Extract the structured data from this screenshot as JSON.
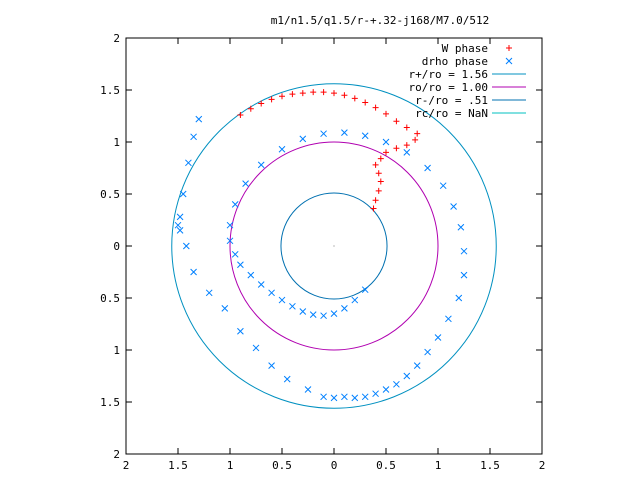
{
  "chart_data": {
    "type": "scatter",
    "title": "m1/n1.5/q1.5/r-+.32-j168/M7.0/512",
    "xlim": [
      -2,
      2
    ],
    "ylim": [
      -2,
      2
    ],
    "x_tick_values": [
      -2,
      -1.5,
      -1,
      -0.5,
      0,
      0.5,
      1,
      1.5,
      2
    ],
    "x_tick_labels": [
      "2",
      "1.5",
      "1",
      "0.5",
      "0",
      "0.5",
      "1",
      "1.5",
      "2"
    ],
    "y_tick_values": [
      2,
      1.5,
      1,
      0.5,
      0,
      -0.5,
      -1,
      -1.5,
      -2
    ],
    "y_tick_labels": [
      "2",
      "1.5",
      "1",
      "0.5",
      "0",
      "0.5",
      "1",
      "1.5",
      "2"
    ],
    "grid": false,
    "legend_position": "top-right",
    "legend": [
      {
        "label": "W phase",
        "kind": "plus",
        "color": "#ff0000"
      },
      {
        "label": "drho phase",
        "kind": "cross",
        "color": "#0080ff"
      },
      {
        "label": "r+/ro = 1.56",
        "kind": "line",
        "color": "#0090c0"
      },
      {
        "label": "ro/ro = 1.00",
        "kind": "line",
        "color": "#b000b0"
      },
      {
        "label": "r-/ro = .51",
        "kind": "line",
        "color": "#0070b0"
      },
      {
        "label": "rc/ro = NaN",
        "kind": "line",
        "color": "#00c0c0"
      }
    ],
    "circles": [
      {
        "name": "r+/ro",
        "r": 1.56,
        "color": "#0090c0"
      },
      {
        "name": "ro/ro",
        "r": 1.0,
        "color": "#b000b0"
      },
      {
        "name": "r-/ro",
        "r": 0.51,
        "color": "#0070b0"
      }
    ],
    "series": [
      {
        "name": "W phase",
        "marker": "plus",
        "color": "#ff0000",
        "x": [
          -0.9,
          -0.8,
          -0.7,
          -0.6,
          -0.5,
          -0.4,
          -0.3,
          -0.2,
          -0.1,
          0.0,
          0.1,
          0.2,
          0.3,
          0.4,
          0.5,
          0.6,
          0.7,
          0.8,
          0.78,
          0.7,
          0.6,
          0.5,
          0.45,
          0.4,
          0.43,
          0.45,
          0.43,
          0.4,
          0.38
        ],
        "y": [
          1.26,
          1.32,
          1.37,
          1.41,
          1.44,
          1.46,
          1.47,
          1.48,
          1.48,
          1.47,
          1.45,
          1.42,
          1.38,
          1.33,
          1.27,
          1.2,
          1.14,
          1.08,
          1.02,
          0.97,
          0.94,
          0.9,
          0.84,
          0.78,
          0.7,
          0.62,
          0.53,
          0.44,
          0.36
        ]
      },
      {
        "name": "drho phase",
        "marker": "cross",
        "color": "#0080ff",
        "x": [
          0.3,
          0.2,
          0.1,
          0.0,
          -0.1,
          -0.2,
          -0.3,
          -0.4,
          -0.5,
          -0.6,
          -0.7,
          -0.8,
          -0.9,
          -0.95,
          -1.0,
          -1.0,
          -0.95,
          -0.85,
          -0.7,
          -0.5,
          -0.3,
          -0.1,
          0.1,
          0.3,
          0.5,
          0.7,
          0.9,
          1.05,
          1.15,
          1.22,
          1.25,
          1.25,
          1.2,
          1.1,
          1.0,
          0.9,
          0.8,
          0.7,
          0.6,
          0.5,
          0.4,
          0.3,
          0.2,
          0.1,
          0.0,
          -0.1,
          -0.25,
          -0.45,
          -0.6,
          -0.75,
          -0.9,
          -1.05,
          -1.2,
          -1.35,
          -1.42,
          -1.48,
          -1.5,
          -1.48,
          -1.45,
          -1.4,
          -1.35,
          -1.3
        ],
        "y": [
          -0.42,
          -0.52,
          -0.6,
          -0.65,
          -0.67,
          -0.66,
          -0.63,
          -0.58,
          -0.52,
          -0.45,
          -0.37,
          -0.28,
          -0.18,
          -0.08,
          0.05,
          0.2,
          0.4,
          0.6,
          0.78,
          0.93,
          1.03,
          1.08,
          1.09,
          1.06,
          1.0,
          0.9,
          0.75,
          0.58,
          0.38,
          0.18,
          -0.05,
          -0.28,
          -0.5,
          -0.7,
          -0.88,
          -1.02,
          -1.15,
          -1.25,
          -1.33,
          -1.38,
          -1.42,
          -1.45,
          -1.46,
          -1.45,
          -1.46,
          -1.45,
          -1.38,
          -1.28,
          -1.15,
          -0.98,
          -0.82,
          -0.6,
          -0.45,
          -0.25,
          0.0,
          0.15,
          0.2,
          0.28,
          0.5,
          0.8,
          1.05,
          1.22
        ]
      }
    ]
  }
}
